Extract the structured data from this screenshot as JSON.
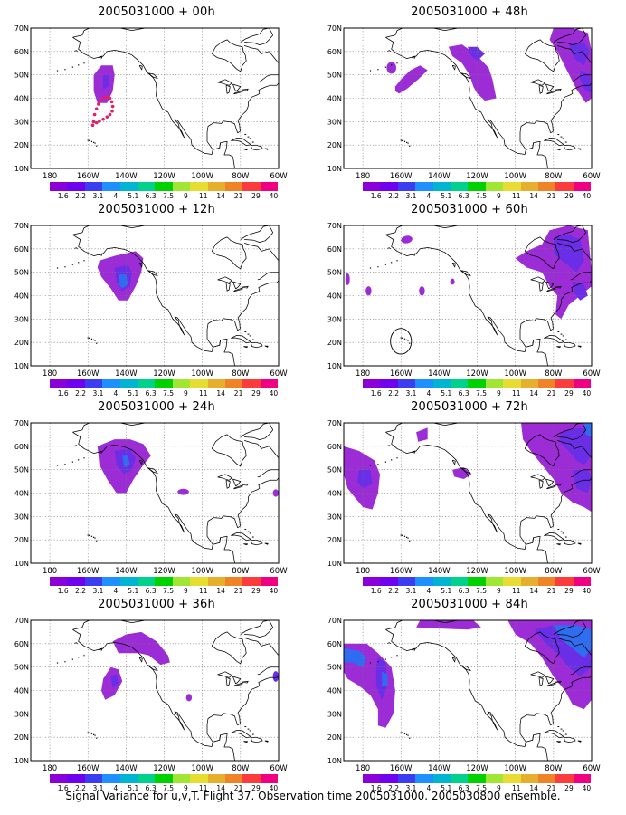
{
  "figure": {
    "caption": "Signal Variance for u,v,T. Flight 37. Observation time 2005031000. 2005030800 ensemble."
  },
  "axes": {
    "lat_labels": [
      "10N",
      "20N",
      "30N",
      "40N",
      "50N",
      "60N",
      "70N"
    ],
    "lon_labels": [
      "180",
      "160W",
      "140W",
      "120W",
      "100W",
      "80W",
      "60W"
    ]
  },
  "colorbar": {
    "labels": [
      "1.6",
      "2.2",
      "3.1",
      "4",
      "5.1",
      "6.3",
      "7.5",
      "9",
      "11",
      "14",
      "21",
      "29",
      "40"
    ],
    "colors": [
      "#8c00d8",
      "#7000f0",
      "#3c3cf0",
      "#1e90ff",
      "#00b4d2",
      "#00d28c",
      "#00d200",
      "#a0e632",
      "#e6dc32",
      "#e6af2d",
      "#f08228",
      "#fa3c3c",
      "#f00082"
    ]
  },
  "panels": [
    {
      "id": "p00",
      "title": "2005031000 + 00h"
    },
    {
      "id": "p48",
      "title": "2005031000 + 48h"
    },
    {
      "id": "p12",
      "title": "2005031000 + 12h"
    },
    {
      "id": "p60",
      "title": "2005031000 + 60h"
    },
    {
      "id": "p24",
      "title": "2005031000 + 24h"
    },
    {
      "id": "p72",
      "title": "2005031000 + 72h"
    },
    {
      "id": "p36",
      "title": "2005031000 + 36h"
    },
    {
      "id": "p84",
      "title": "2005031000 + 84h"
    }
  ],
  "legend_colors": {
    "low": "#9b2cd6",
    "mid": "#6a2ee6",
    "high": "#2f6cf0",
    "track": "#e0206a"
  }
}
